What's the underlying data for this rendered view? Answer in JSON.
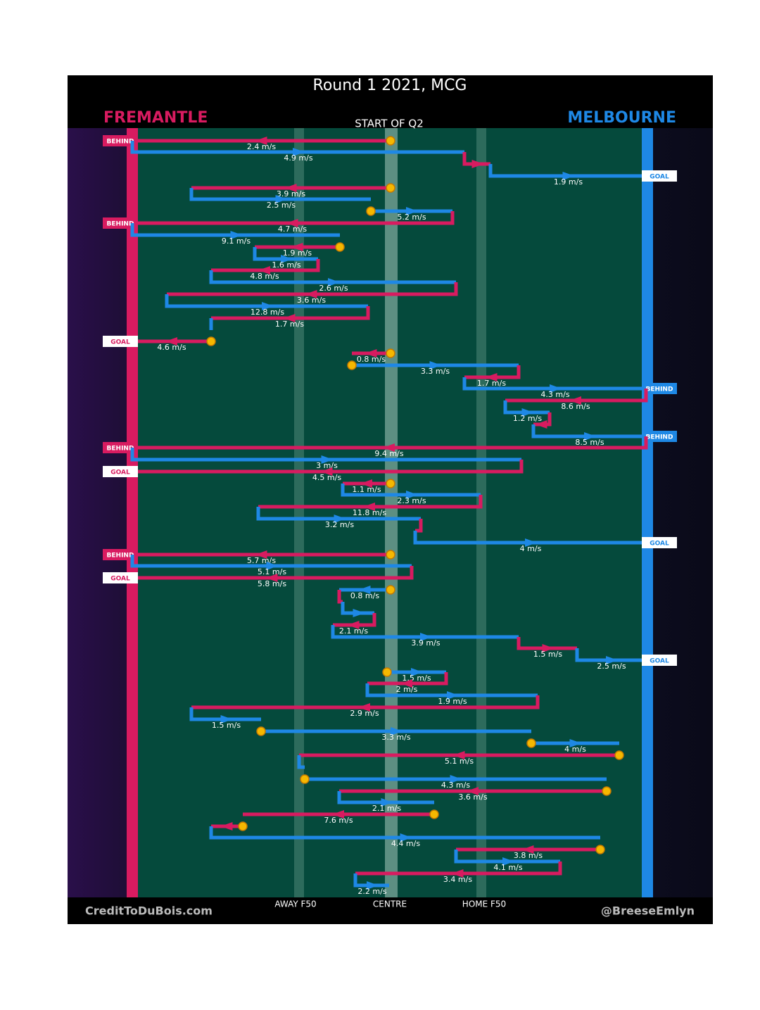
{
  "title": "Round 1 2021, MCG",
  "subtitle": "START OF Q2",
  "teams": [
    {
      "name": "FREMANTLE",
      "color": "#d81b60"
    },
    {
      "name": "MELBOURNE",
      "color": "#1e88e5"
    }
  ],
  "zones": [
    "AWAY F50",
    "CENTRE",
    "HOME F50"
  ],
  "credits": [
    "CreditToDuBois.com",
    "@BreeseEmlyn"
  ],
  "legs": [
    {
      "team": 0,
      "speed": "2.4 m/s",
      "outcome": "BEHIND"
    },
    {
      "team": 1,
      "speed": "4.9 m/s"
    },
    {
      "team": 0
    },
    {
      "team": 1,
      "speed": "1.9 m/s",
      "outcome": "GOAL"
    },
    {
      "team": 0,
      "speed": "3.9 m/s"
    },
    {
      "team": 1,
      "speed": "2.5 m/s"
    },
    {
      "team": 1,
      "speed": "5.2 m/s"
    },
    {
      "team": 0,
      "speed": "4.7 m/s",
      "outcome": "BEHIND"
    },
    {
      "team": 1,
      "speed": "9.1 m/s"
    },
    {
      "team": 0,
      "speed": "1.9 m/s"
    },
    {
      "team": 1,
      "speed": "1.6 m/s"
    },
    {
      "team": 0,
      "speed": "4.8 m/s"
    },
    {
      "team": 1,
      "speed": "2.6 m/s"
    },
    {
      "team": 0,
      "speed": "3.6 m/s"
    },
    {
      "team": 1,
      "speed": "12.8 m/s"
    },
    {
      "team": 0,
      "speed": "1.7 m/s"
    },
    {
      "team": 1
    },
    {
      "team": 0,
      "speed": "4.6 m/s",
      "outcome": "GOAL"
    },
    {
      "team": 0,
      "speed": "0.8 m/s"
    },
    {
      "team": 1,
      "speed": "3.3 m/s"
    },
    {
      "team": 0,
      "speed": "1.7 m/s"
    },
    {
      "team": 1,
      "speed": "4.3 m/s",
      "outcome": "BEHIND"
    },
    {
      "team": 0,
      "speed": "8.6 m/s"
    },
    {
      "team": 1,
      "speed": "1.2 m/s"
    },
    {
      "team": 0
    },
    {
      "team": 1,
      "speed": "8.5 m/s",
      "outcome": "BEHIND"
    },
    {
      "team": 0,
      "speed": "9.4 m/s",
      "outcome": "BEHIND"
    },
    {
      "team": 1,
      "speed": "3 m/s"
    },
    {
      "team": 0,
      "speed": "4.5 m/s",
      "outcome": "GOAL"
    },
    {
      "team": 0,
      "speed": "1.1 m/s"
    },
    {
      "team": 1,
      "speed": "2.3 m/s"
    },
    {
      "team": 0,
      "speed": "11.8 m/s"
    },
    {
      "team": 1,
      "speed": "3.2 m/s"
    },
    {
      "team": 0
    },
    {
      "team": 1,
      "speed": "4 m/s",
      "outcome": "GOAL"
    },
    {
      "team": 0,
      "speed": "5.7 m/s",
      "outcome": "BEHIND"
    },
    {
      "team": 1,
      "speed": "5.1 m/s"
    },
    {
      "team": 0,
      "speed": "5.8 m/s",
      "outcome": "GOAL"
    },
    {
      "team": 1,
      "speed": "0.8 m/s"
    },
    {
      "team": 0
    },
    {
      "team": 1
    },
    {
      "team": 0,
      "speed": "2.1 m/s"
    },
    {
      "team": 1,
      "speed": "3.9 m/s"
    },
    {
      "team": 0,
      "speed": "1.5 m/s"
    },
    {
      "team": 1,
      "speed": "2.5 m/s",
      "outcome": "GOAL"
    },
    {
      "team": 1,
      "speed": "1.5 m/s"
    },
    {
      "team": 0,
      "speed": "2 m/s"
    },
    {
      "team": 1,
      "speed": "1.9 m/s"
    },
    {
      "team": 0,
      "speed": "2.9 m/s"
    },
    {
      "team": 1,
      "speed": "1.5 m/s"
    },
    {
      "team": 1,
      "speed": "3.3 m/s"
    },
    {
      "team": 1,
      "speed": "4 m/s"
    },
    {
      "team": 0,
      "speed": "5.1 m/s"
    },
    {
      "team": 1
    },
    {
      "team": 1,
      "speed": "4.3 m/s"
    },
    {
      "team": 0,
      "speed": "3.6 m/s"
    },
    {
      "team": 1,
      "speed": "2.1 m/s"
    },
    {
      "team": 0,
      "speed": "7.6 m/s"
    },
    {
      "team": 0
    },
    {
      "team": 1,
      "speed": "4.4 m/s"
    },
    {
      "team": 0,
      "speed": "3.8 m/s"
    },
    {
      "team": 1,
      "speed": "4.1 m/s"
    },
    {
      "team": 0,
      "speed": "3.4 m/s"
    },
    {
      "team": 1,
      "speed": "2.2 m/s"
    }
  ]
}
